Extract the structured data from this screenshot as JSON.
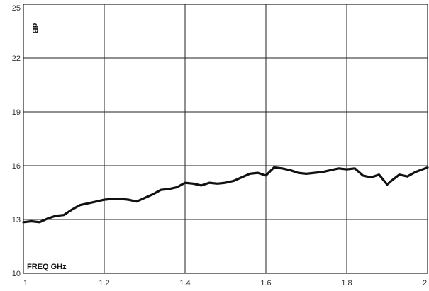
{
  "chart_data": {
    "type": "line",
    "title": "",
    "xlabel": "FREQ  GHz",
    "ylabel": "dB",
    "xlim": [
      1,
      2
    ],
    "ylim": [
      10,
      25
    ],
    "x_ticks": [
      1,
      1.2,
      1.4,
      1.6,
      1.8,
      2
    ],
    "x_tick_labels": [
      "1",
      "1.2",
      "1.4",
      "1.6",
      "1.8",
      "2"
    ],
    "y_ticks": [
      10,
      13,
      16,
      19,
      22,
      25
    ],
    "y_tick_labels": [
      "10",
      "13",
      "16",
      "19",
      "22",
      "25"
    ],
    "grid": true,
    "series": [
      {
        "color": "#111111",
        "x": [
          1.0,
          1.02,
          1.04,
          1.06,
          1.08,
          1.1,
          1.12,
          1.14,
          1.16,
          1.18,
          1.2,
          1.22,
          1.24,
          1.26,
          1.28,
          1.3,
          1.32,
          1.34,
          1.36,
          1.38,
          1.4,
          1.42,
          1.44,
          1.46,
          1.48,
          1.5,
          1.52,
          1.54,
          1.56,
          1.58,
          1.6,
          1.62,
          1.64,
          1.66,
          1.68,
          1.7,
          1.72,
          1.74,
          1.76,
          1.78,
          1.8,
          1.82,
          1.84,
          1.86,
          1.88,
          1.9,
          1.91,
          1.93,
          1.95,
          1.97,
          2.0
        ],
        "y": [
          12.85,
          12.9,
          12.85,
          13.05,
          13.2,
          13.25,
          13.55,
          13.8,
          13.9,
          14.0,
          14.1,
          14.15,
          14.15,
          14.1,
          14.0,
          14.2,
          14.4,
          14.65,
          14.7,
          14.8,
          15.05,
          15.0,
          14.9,
          15.05,
          15.0,
          15.05,
          15.15,
          15.35,
          15.55,
          15.6,
          15.45,
          15.9,
          15.85,
          15.75,
          15.6,
          15.55,
          15.6,
          15.65,
          15.75,
          15.85,
          15.8,
          15.85,
          15.45,
          15.35,
          15.5,
          14.95,
          15.15,
          15.5,
          15.4,
          15.65,
          15.9
        ]
      }
    ]
  }
}
